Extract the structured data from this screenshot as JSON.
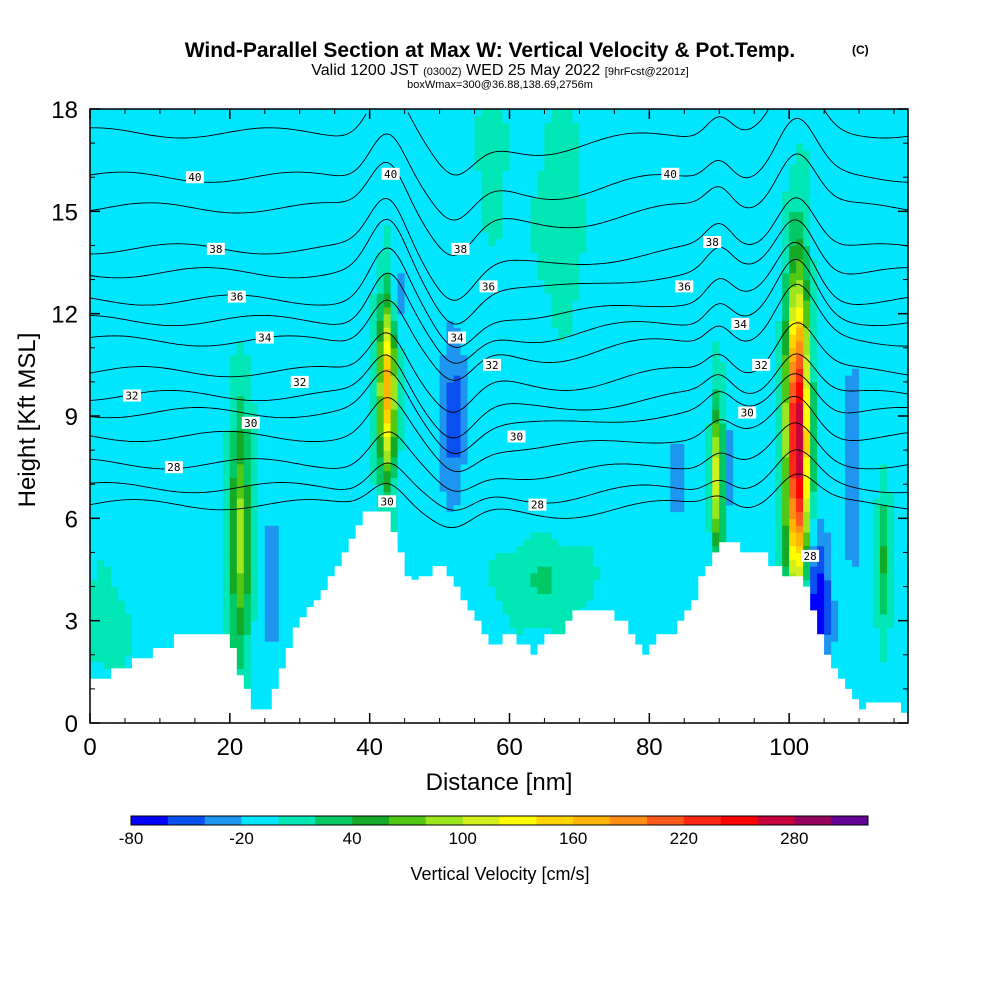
{
  "chart_data": {
    "type": "heatmap",
    "title": "Wind-Parallel Section at Max W: Vertical Velocity & Pot.Temp.",
    "title_mark": "(C)",
    "subtitle_pre": "Valid 1200 JST",
    "subtitle_utc": "(0300Z)",
    "subtitle_post": "WED 25 May 2022",
    "subtitle_fcst": "[9hrFcst@2201z]",
    "subtitle2": "boxWmax=300@36.88,138.69,2756m",
    "xlabel": "Distance [nm]",
    "ylabel": "Height [Kft MSL]",
    "xlim": [
      0,
      117
    ],
    "ylim": [
      0,
      18
    ],
    "xticks": [
      0,
      20,
      40,
      60,
      80,
      100
    ],
    "yticks": [
      0,
      3,
      6,
      9,
      12,
      15,
      18
    ],
    "colorbar": {
      "label": "Vertical Velocity [cm/s]",
      "tick_labels": [
        "-80",
        "-20",
        "40",
        "100",
        "160",
        "220",
        "280"
      ],
      "tick_values": [
        -80,
        -20,
        40,
        100,
        160,
        220,
        280
      ],
      "levels": [
        -80,
        -60,
        -40,
        -20,
        0,
        20,
        40,
        60,
        80,
        100,
        120,
        140,
        160,
        180,
        200,
        220,
        240,
        260,
        280,
        300,
        320
      ],
      "colors": [
        "#0000ff",
        "#0a50f0",
        "#1e96f0",
        "#00e6ff",
        "#00e6b4",
        "#00c864",
        "#14aa28",
        "#50c814",
        "#9be61e",
        "#d2f01e",
        "#ffff00",
        "#ffd200",
        "#ffb400",
        "#ff8c14",
        "#ff5a1e",
        "#ff2814",
        "#ff0000",
        "#c8003c",
        "#96005a",
        "#640096"
      ]
    },
    "theta_contours": {
      "units": "C",
      "levels": [
        27,
        28,
        29,
        30,
        31,
        32,
        33,
        34,
        35,
        36,
        37,
        38,
        39,
        40,
        41
      ],
      "base_heights_kft": [
        6.4,
        6.9,
        7.6,
        8.4,
        9.1,
        9.6,
        10.3,
        11.2,
        11.8,
        12.4,
        13.2,
        13.9,
        15.1,
        16.0,
        17.3
      ],
      "labels": [
        {
          "text": "28",
          "x": 12,
          "y": 7.5
        },
        {
          "text": "30",
          "x": 23,
          "y": 8.8
        },
        {
          "text": "32",
          "x": 6,
          "y": 9.6
        },
        {
          "text": "32",
          "x": 30,
          "y": 10.0
        },
        {
          "text": "34",
          "x": 25,
          "y": 11.3
        },
        {
          "text": "36",
          "x": 21,
          "y": 12.5
        },
        {
          "text": "38",
          "x": 18,
          "y": 13.9
        },
        {
          "text": "40",
          "x": 15,
          "y": 16.0
        },
        {
          "text": "40",
          "x": 43,
          "y": 16.1
        },
        {
          "text": "30",
          "x": 42.5,
          "y": 6.5
        },
        {
          "text": "38",
          "x": 53,
          "y": 13.9
        },
        {
          "text": "36",
          "x": 57,
          "y": 12.8
        },
        {
          "text": "34",
          "x": 52.5,
          "y": 11.3
        },
        {
          "text": "32",
          "x": 57.5,
          "y": 10.5
        },
        {
          "text": "30",
          "x": 61,
          "y": 8.4
        },
        {
          "text": "28",
          "x": 64,
          "y": 6.4
        },
        {
          "text": "40",
          "x": 83,
          "y": 16.1
        },
        {
          "text": "38",
          "x": 89,
          "y": 14.1
        },
        {
          "text": "36",
          "x": 85,
          "y": 12.8
        },
        {
          "text": "34",
          "x": 93,
          "y": 11.7
        },
        {
          "text": "32",
          "x": 96,
          "y": 10.5
        },
        {
          "text": "30",
          "x": 94,
          "y": 9.1
        },
        {
          "text": "28",
          "x": 103,
          "y": 4.9
        }
      ]
    },
    "terrain_kft": {
      "x": [
        0,
        3,
        6,
        9,
        12,
        15,
        18,
        20,
        21,
        22,
        23,
        24,
        25,
        26,
        27,
        28,
        29,
        30,
        31,
        32,
        33,
        34,
        35,
        36,
        37,
        38,
        39,
        40,
        41,
        42,
        43,
        44,
        45,
        46,
        47,
        48,
        49,
        50,
        51,
        52,
        53,
        54,
        55,
        56,
        57,
        58,
        59,
        60,
        61,
        62,
        63,
        64,
        65,
        66,
        67,
        68,
        69,
        70,
        71,
        72,
        73,
        74,
        75,
        76,
        77,
        78,
        79,
        80,
        81,
        82,
        83,
        84,
        85,
        86,
        87,
        88,
        89,
        90,
        91,
        92,
        93,
        94,
        95,
        96,
        97,
        98,
        99,
        100,
        101,
        102,
        103,
        104,
        105,
        106,
        107,
        108,
        109,
        110,
        111,
        112,
        113,
        114,
        115,
        116,
        117
      ],
      "y": [
        1.3,
        1.6,
        1.9,
        2.2,
        2.6,
        2.6,
        2.6,
        2.2,
        1.4,
        1.0,
        0.4,
        0.4,
        0.4,
        1.0,
        1.6,
        2.2,
        2.8,
        3.1,
        3.4,
        3.6,
        3.9,
        4.3,
        4.6,
        5.0,
        5.4,
        5.8,
        6.2,
        6.2,
        6.2,
        6.2,
        5.6,
        5.0,
        4.3,
        4.2,
        4.3,
        4.3,
        4.6,
        4.6,
        4.3,
        4.0,
        3.6,
        3.3,
        3.0,
        2.6,
        2.3,
        2.3,
        2.6,
        2.6,
        2.3,
        2.3,
        2.0,
        2.3,
        2.6,
        2.6,
        2.6,
        3.0,
        3.3,
        3.3,
        3.3,
        3.3,
        3.3,
        3.3,
        3.0,
        3.0,
        2.6,
        2.3,
        2.0,
        2.3,
        2.6,
        2.6,
        2.6,
        3.0,
        3.3,
        3.6,
        4.3,
        4.6,
        5.0,
        5.3,
        5.3,
        5.3,
        5.0,
        5.0,
        5.0,
        5.0,
        4.6,
        4.6,
        4.3,
        4.3,
        4.3,
        4.0,
        3.3,
        2.6,
        2.0,
        1.6,
        1.3,
        1.0,
        0.7,
        0.4,
        0.6,
        0.6,
        0.6,
        0.6,
        0.6,
        0.3,
        0.3
      ]
    },
    "updraft_cores": [
      {
        "x": 21.5,
        "y": 5.5,
        "sx": 1.0,
        "sy": 2.5,
        "w_cm_s": 95
      },
      {
        "x": 42.5,
        "y": 9.8,
        "sx": 0.85,
        "sy": 1.8,
        "w_cm_s": 175
      },
      {
        "x": 89.8,
        "y": 7.2,
        "sx": 0.6,
        "sy": 1.6,
        "w_cm_s": 130
      },
      {
        "x": 101.2,
        "y": 8.3,
        "sx": 1.1,
        "sy": 3.1,
        "w_cm_s": 295
      },
      {
        "x": 113.5,
        "y": 4.7,
        "sx": 0.7,
        "sy": 1.6,
        "w_cm_s": 45
      },
      {
        "x": 67,
        "y": 15.0,
        "sx": 2.5,
        "sy": 2.5,
        "w_cm_s": 15
      },
      {
        "x": 57.5,
        "y": 17.0,
        "sx": 1.2,
        "sy": 1.6,
        "w_cm_s": 25
      },
      {
        "x": 65,
        "y": 4.1,
        "sx": 4.0,
        "sy": 0.8,
        "w_cm_s": 28
      },
      {
        "x": 2,
        "y": 2.8,
        "sx": 2.5,
        "sy": 1.2,
        "w_cm_s": 12
      }
    ],
    "downdraft_cores": [
      {
        "x": 52,
        "y": 9.0,
        "sx": 1.3,
        "sy": 1.8,
        "w_cm_s": -45
      },
      {
        "x": 104,
        "y": 3.5,
        "sx": 1.4,
        "sy": 1.5,
        "w_cm_s": -70
      },
      {
        "x": 109,
        "y": 7.5,
        "sx": 0.9,
        "sy": 2.0,
        "w_cm_s": -40
      },
      {
        "x": 26,
        "y": 4.0,
        "sx": 0.9,
        "sy": 1.4,
        "w_cm_s": -35
      },
      {
        "x": 44,
        "y": 12.5,
        "sx": 0.6,
        "sy": 0.8,
        "w_cm_s": -30
      },
      {
        "x": 91,
        "y": 7.5,
        "sx": 0.7,
        "sy": 1.2,
        "w_cm_s": -30
      },
      {
        "x": 84,
        "y": 7.2,
        "sx": 0.7,
        "sy": 1.2,
        "w_cm_s": -25
      }
    ]
  }
}
